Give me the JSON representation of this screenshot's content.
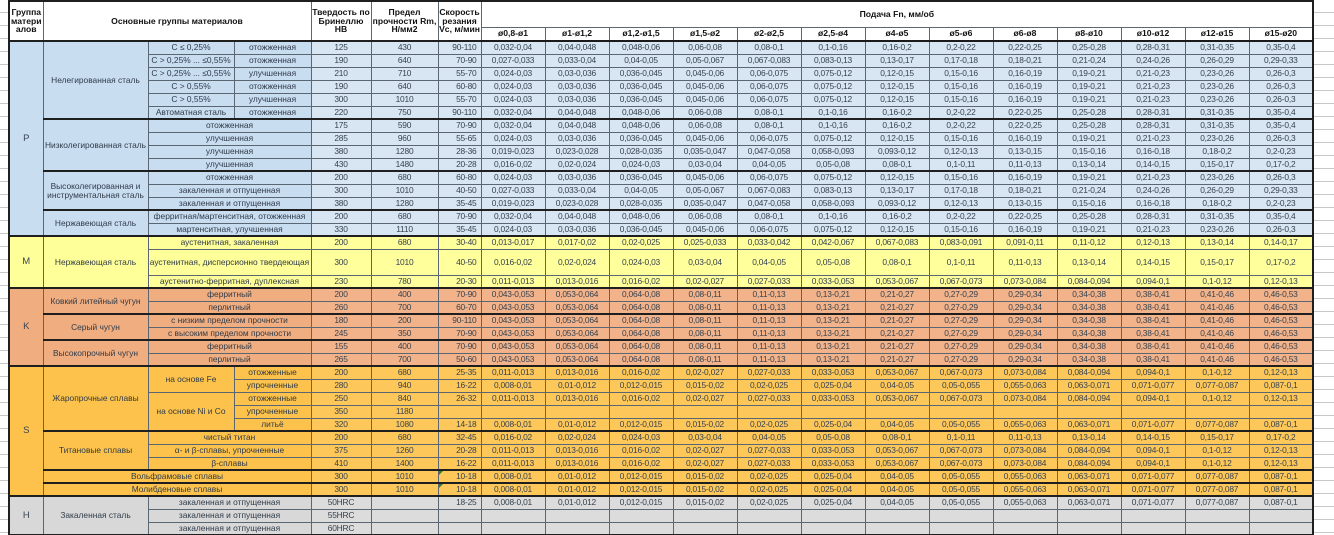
{
  "header": {
    "group_col": "Группа материалов",
    "materials_col": "Основные группы материалов",
    "hardness_col": "Твердость по Бринеллю HB",
    "strength_col": "Предел прочности Rm, Н/мм2",
    "speed_col": "Скорость резания Vc, м/мин",
    "feed_col": "Подача Fn, мм/об",
    "diameters": [
      "ø0,8-ø1",
      "ø1-ø1,2",
      "ø1,2-ø1,5",
      "ø1,5-ø2",
      "ø2-ø2,5",
      "ø2,5-ø4",
      "ø4-ø5",
      "ø5-ø6",
      "ø6-ø8",
      "ø8-ø10",
      "ø10-ø12",
      "ø12-ø15",
      "ø15-ø20"
    ]
  },
  "group_colors": {
    "P": {
      "label": "#c9ddf1",
      "data": "#d8e6f4"
    },
    "M": {
      "label": "#ffff99",
      "data": "#ffff9c"
    },
    "K": {
      "label": "#f0ad80",
      "data": "#f2b38b"
    },
    "S": {
      "label": "#fcc24b",
      "data": "#fdc75a"
    },
    "H": {
      "label": "#d8d8d8",
      "data": "#dcdcdc"
    }
  },
  "feed_profiles": {
    "A": [
      "0,032-0,04",
      "0,04-0,048",
      "0,048-0,06",
      "0,06-0,08",
      "0,08-0,1",
      "0,1-0,16",
      "0,16-0,2",
      "0,2-0,22",
      "0,22-0,25",
      "0,25-0,28",
      "0,28-0,31",
      "0,31-0,35",
      "0,35-0,4"
    ],
    "B": [
      "0,027-0,033",
      "0,033-0,04",
      "0,04-0,05",
      "0,05-0,067",
      "0,067-0,083",
      "0,083-0,13",
      "0,13-0,17",
      "0,17-0,18",
      "0,18-0,21",
      "0,21-0,24",
      "0,24-0,26",
      "0,26-0,29",
      "0,29-0,33"
    ],
    "C": [
      "0,024-0,03",
      "0,03-0,036",
      "0,036-0,045",
      "0,045-0,06",
      "0,06-0,075",
      "0,075-0,12",
      "0,12-0,15",
      "0,15-0,16",
      "0,16-0,19",
      "0,19-0,21",
      "0,21-0,23",
      "0,23-0,26",
      "0,26-0,3"
    ],
    "D": [
      "0,019-0,023",
      "0,023-0,028",
      "0,028-0,035",
      "0,035-0,047",
      "0,047-0,058",
      "0,058-0,093",
      "0,093-0,12",
      "0,12-0,13",
      "0,13-0,15",
      "0,15-0,16",
      "0,16-0,18",
      "0,18-0,2",
      "0,2-0,23"
    ],
    "E": [
      "0,016-0,02",
      "0,02-0,024",
      "0,024-0,03",
      "0,03-0,04",
      "0,04-0,05",
      "0,05-0,08",
      "0,08-0,1",
      "0,1-0,11",
      "0,11-0,13",
      "0,13-0,14",
      "0,14-0,15",
      "0,15-0,17",
      "0,17-0,2"
    ],
    "F": [
      "0,013-0,017",
      "0,017-0,02",
      "0,02-0,025",
      "0,025-0,033",
      "0,033-0,042",
      "0,042-0,067",
      "0,067-0,083",
      "0,083-0,091",
      "0,091-0,11",
      "0,11-0,12",
      "0,12-0,13",
      "0,13-0,14",
      "0,14-0,17"
    ],
    "G": [
      "0,011-0,013",
      "0,013-0,016",
      "0,016-0,02",
      "0,02-0,027",
      "0,027-0,033",
      "0,033-0,053",
      "0,053-0,067",
      "0,067-0,073",
      "0,073-0,084",
      "0,084-0,094",
      "0,094-0,1",
      "0,1-0,12",
      "0,12-0,13"
    ],
    "H": [
      "0,043-0,053",
      "0,053-0,064",
      "0,064-0,08",
      "0,08-0,11",
      "0,11-0,13",
      "0,13-0,21",
      "0,21-0,27",
      "0,27-0,29",
      "0,29-0,34",
      "0,34-0,38",
      "0,38-0,41",
      "0,41-0,46",
      "0,46-0,53"
    ],
    "I": [
      "0,008-0,01",
      "0,01-0,012",
      "0,012-0,015",
      "0,015-0,02",
      "0,02-0,025",
      "0,025-0,04",
      "0,04-0,05",
      "0,05-0,055",
      "0,055-0,063",
      "0,063-0,071",
      "0,071-0,077",
      "0,077-0,087",
      "0,087-0,1"
    ],
    "BLANK": [
      "",
      "",
      "",
      "",
      "",
      "",
      "",
      "",
      "",
      "",
      "",
      "",
      ""
    ]
  },
  "rows": [
    {
      "g": "P",
      "grows": 15,
      "mat": "Нелегированная сталь",
      "mrows": 6,
      "sub": "C ≤ 0,25%",
      "cond": "отожженная",
      "hb": "125",
      "rm": "430",
      "vc": "90-110",
      "p": "A"
    },
    {
      "sub": "C > 0,25% ... ≤0,55%",
      "cond": "отожженная",
      "hb": "190",
      "rm": "640",
      "vc": "70-90",
      "p": "B"
    },
    {
      "sub": "C > 0,25% ... ≤0,55%",
      "cond": "улучшенная",
      "hb": "210",
      "rm": "710",
      "vc": "55-70",
      "p": "C"
    },
    {
      "sub": "C > 0,55%",
      "cond": "отожженная",
      "hb": "190",
      "rm": "640",
      "vc": "60-80",
      "p": "C"
    },
    {
      "sub": "C > 0,55%",
      "cond": "улучшенная",
      "hb": "300",
      "rm": "1010",
      "vc": "55-70",
      "p": "C"
    },
    {
      "sub": "Автоматная сталь",
      "cond": "отожженная",
      "hb": "220",
      "rm": "750",
      "vc": "90-110",
      "p": "A"
    },
    {
      "mat": "Низколегированная сталь",
      "mrows": 4,
      "wide": "отожженная",
      "hb": "175",
      "rm": "590",
      "vc": "70-90",
      "p": "A"
    },
    {
      "wide": "улучшенная",
      "hb": "285",
      "rm": "960",
      "vc": "55-65",
      "p": "C"
    },
    {
      "wide": "улучшенная",
      "hb": "380",
      "rm": "1280",
      "vc": "28-36",
      "p": "D"
    },
    {
      "wide": "улучшенная",
      "hb": "430",
      "rm": "1480",
      "vc": "20-28",
      "p": "E"
    },
    {
      "mat": "Высоколегированная и инструментальная сталь",
      "mrows": 3,
      "wide": "отожженная",
      "hb": "200",
      "rm": "680",
      "vc": "60-80",
      "p": "C"
    },
    {
      "wide": "закаленная и отпущенная",
      "hb": "300",
      "rm": "1010",
      "vc": "40-50",
      "p": "B"
    },
    {
      "wide": "закаленная и отпущенная",
      "hb": "380",
      "rm": "1280",
      "vc": "35-45",
      "p": "D"
    },
    {
      "mat": "Нержавеющая сталь",
      "mrows": 2,
      "wide": "ферритная/мартенситная, отожженная",
      "hb": "200",
      "rm": "680",
      "vc": "70-90",
      "p": "A"
    },
    {
      "wide": "мартенситная, улучшенная",
      "hb": "330",
      "rm": "1110",
      "vc": "35-45",
      "p": "C"
    },
    {
      "g": "M",
      "grows": 3,
      "mat": "Нержавеющая сталь",
      "mrows": 3,
      "wide": "аустенитная, закаленная",
      "hb": "200",
      "rm": "680",
      "vc": "30-40",
      "p": "F"
    },
    {
      "wide": "аустенитная, дисперсионно твердеющая",
      "hb": "300",
      "rm": "1010",
      "vc": "40-50",
      "p": "E",
      "tall": true
    },
    {
      "wide": "аустенитно-ферритная, дуплексная",
      "hb": "230",
      "rm": "780",
      "vc": "20-30",
      "p": "G"
    },
    {
      "g": "K",
      "grows": 6,
      "mat": "Ковкий литейный чугун",
      "mrows": 2,
      "wide": "ферритный",
      "hb": "200",
      "rm": "400",
      "vc": "70-90",
      "p": "H"
    },
    {
      "wide": "перлитный",
      "hb": "260",
      "rm": "700",
      "vc": "60-70",
      "p": "H"
    },
    {
      "mat": "Серый чугун",
      "mrows": 2,
      "wide": "с низким пределом прочности",
      "hb": "180",
      "rm": "200",
      "vc": "90-110",
      "p": "H"
    },
    {
      "wide": "с высоким пределом прочности",
      "hb": "245",
      "rm": "350",
      "vc": "70-90",
      "p": "H"
    },
    {
      "mat": "Высокопрочный чугун",
      "mrows": 2,
      "wide": "ферритный",
      "hb": "155",
      "rm": "400",
      "vc": "70-90",
      "p": "H"
    },
    {
      "wide": "перлитный",
      "hb": "265",
      "rm": "700",
      "vc": "50-60",
      "p": "H"
    },
    {
      "g": "S",
      "grows": 10,
      "mat": "Жаропрочные сплавы",
      "mrows": 5,
      "sub": "на основе Fe",
      "srows": 2,
      "cond": "отожженные",
      "hb": "200",
      "rm": "680",
      "vc": "25-35",
      "p": "G"
    },
    {
      "cond": "упрочненные",
      "hb": "280",
      "rm": "940",
      "vc": "16-22",
      "p": "I"
    },
    {
      "sub": "на основе Ni и Co",
      "srows": 3,
      "cond": "отожженные",
      "hb": "250",
      "rm": "840",
      "vc": "26-32",
      "p": "G"
    },
    {
      "cond": "упрочненные",
      "hb": "350",
      "rm": "1180",
      "vc": "",
      "p": "BLANK"
    },
    {
      "cond": "литьё",
      "hb": "320",
      "rm": "1080",
      "vc": "14-18",
      "p": "I"
    },
    {
      "mat": "Титановые сплавы",
      "mrows": 3,
      "wide": "чистый титан",
      "hb": "200",
      "rm": "680",
      "vc": "32-45",
      "p": "E"
    },
    {
      "wide": "α- и β-сплавы, упрочненные",
      "hb": "375",
      "rm": "1260",
      "vc": "20-28",
      "p": "G"
    },
    {
      "wide": "β-сплавы",
      "hb": "410",
      "rm": "1400",
      "vc": "16-22",
      "p": "G"
    },
    {
      "full": "Вольфрамовые сплавы",
      "hb": "300",
      "rm": "1010",
      "vc": "10-18",
      "p": "I",
      "flag": true
    },
    {
      "full": "Молибденовые сплавы",
      "hb": "300",
      "rm": "1010",
      "vc": "10-18",
      "p": "I",
      "flag": true
    },
    {
      "g": "H",
      "grows": 3,
      "mat": "Закаленная сталь",
      "mrows": 3,
      "wide": "закаленная и отпущенная",
      "hb": "50HRC",
      "rm": "",
      "vc": "18-25",
      "p": "I"
    },
    {
      "wide": "закаленная и отпущенная",
      "hb": "55HRC",
      "rm": "",
      "vc": "",
      "p": "BLANK"
    },
    {
      "wide": "закаленная и отпущенная",
      "hb": "60HRC",
      "rm": "",
      "vc": "",
      "p": "BLANK"
    }
  ]
}
